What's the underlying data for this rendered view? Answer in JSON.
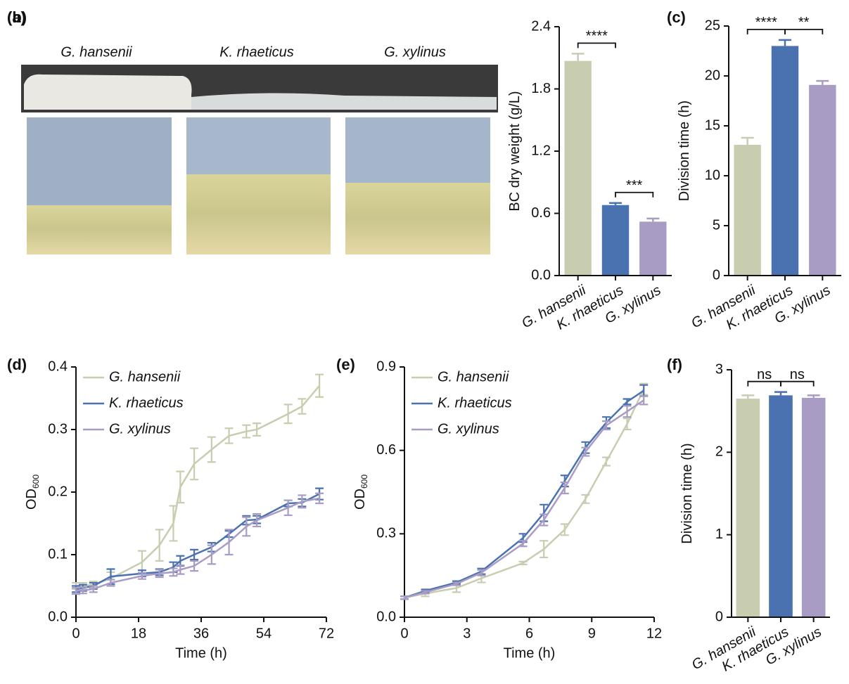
{
  "photo_panel": {
    "panel_label": "(a)",
    "captions": [
      "G. hansenii",
      "K. rhaeticus",
      "G. xylinus"
    ]
  },
  "chart_data": [
    {
      "type": "bar",
      "panel_label": "(b)",
      "y_label": "BC dry weight (g/L)",
      "categories": [
        "G. hansenii",
        "K. rhaeticus",
        "G. xylinus"
      ],
      "values": [
        2.07,
        0.68,
        0.52
      ],
      "errors": [
        0.07,
        0.02,
        0.03
      ],
      "colors": [
        "#c8cdb0",
        "#4a72b0",
        "#a99cc4"
      ],
      "ylim": [
        0,
        2.4
      ],
      "yticks": [
        {
          "value": 0,
          "label": "0.0"
        },
        0.6,
        1.2,
        1.8,
        2.4
      ],
      "significance": [
        {
          "pair": [
            0,
            1
          ],
          "label": "****"
        },
        {
          "pair": [
            1,
            2
          ],
          "label": "***"
        }
      ]
    },
    {
      "type": "bar",
      "panel_label": "(c)",
      "y_label": "Division time (h)",
      "categories": [
        "G. hansenii",
        "K. rhaeticus",
        "G. xylinus"
      ],
      "values": [
        13.1,
        23.0,
        19.1
      ],
      "errors": [
        0.7,
        0.6,
        0.4
      ],
      "colors": [
        "#c8cdb0",
        "#4a72b0",
        "#a99cc4"
      ],
      "ylim": [
        0,
        25
      ],
      "yticks": [
        0,
        5,
        10,
        15,
        20,
        25
      ],
      "significance": [
        {
          "pair": [
            0,
            1
          ],
          "label": "****"
        },
        {
          "pair": [
            1,
            2
          ],
          "label": "**"
        }
      ]
    },
    {
      "type": "line",
      "panel_label": "(d)",
      "x_label": "Time (h)",
      "y_label": "OD",
      "y_label_sub": "600",
      "xlim": [
        0,
        72
      ],
      "xticks": [
        0,
        18,
        36,
        54,
        72
      ],
      "ylim": [
        0,
        0.4
      ],
      "yticks": [
        {
          "value": 0,
          "label": "0.0"
        },
        0.1,
        0.2,
        0.3,
        0.4
      ],
      "x": [
        0,
        2,
        5,
        10,
        19,
        24,
        28,
        30,
        34,
        39,
        44,
        49,
        52,
        61,
        65,
        70
      ],
      "series": [
        {
          "name": "G. hansenii",
          "color": "#c8cdb0",
          "values": [
            0.05,
            0.05,
            0.052,
            0.062,
            0.088,
            0.115,
            0.15,
            0.208,
            0.245,
            0.268,
            0.29,
            0.297,
            0.3,
            0.325,
            0.337,
            0.37
          ],
          "errors": [
            0.005,
            0.005,
            0.005,
            0.01,
            0.018,
            0.025,
            0.028,
            0.025,
            0.025,
            0.02,
            0.012,
            0.01,
            0.01,
            0.015,
            0.012,
            0.018
          ]
        },
        {
          "name": "K. rhaeticus",
          "color": "#4a72b0",
          "values": [
            0.045,
            0.047,
            0.05,
            0.065,
            0.07,
            0.072,
            0.08,
            0.09,
            0.1,
            0.112,
            0.133,
            0.155,
            0.156,
            0.182,
            0.183,
            0.197
          ],
          "errors": [
            0.005,
            0.005,
            0.005,
            0.012,
            0.005,
            0.005,
            0.008,
            0.008,
            0.008,
            0.007,
            0.005,
            0.007,
            0.006,
            0.005,
            0.006,
            0.009
          ]
        },
        {
          "name": "G. xylinus",
          "color": "#a99cc4",
          "values": [
            0.042,
            0.043,
            0.045,
            0.055,
            0.066,
            0.07,
            0.072,
            0.076,
            0.082,
            0.1,
            0.12,
            0.145,
            0.155,
            0.175,
            0.185,
            0.19
          ],
          "errors": [
            0.005,
            0.005,
            0.005,
            0.005,
            0.005,
            0.006,
            0.006,
            0.007,
            0.008,
            0.015,
            0.02,
            0.015,
            0.01,
            0.012,
            0.01,
            0.008
          ]
        }
      ]
    },
    {
      "type": "line",
      "panel_label": "(e)",
      "x_label": "Time (h)",
      "y_label": "OD",
      "y_label_sub": "600",
      "xlim": [
        0,
        12
      ],
      "xticks": [
        0,
        3,
        6,
        9,
        12
      ],
      "ylim": [
        0,
        0.9
      ],
      "yticks": [
        {
          "value": 0,
          "label": "0.0"
        },
        0.3,
        0.6,
        0.9
      ],
      "x": [
        0,
        1,
        2.5,
        3.7,
        5.7,
        6.7,
        7.7,
        8.7,
        9.7,
        10.7,
        11.5
      ],
      "series": [
        {
          "name": "G. hansenii",
          "color": "#c8cdb0",
          "values": [
            0.07,
            0.085,
            0.105,
            0.14,
            0.195,
            0.245,
            0.315,
            0.425,
            0.56,
            0.695,
            0.82
          ],
          "errors": [
            0.005,
            0.01,
            0.015,
            0.015,
            0.005,
            0.03,
            0.02,
            0.015,
            0.015,
            0.02,
            0.02
          ]
        },
        {
          "name": "K. rhaeticus",
          "color": "#4a72b0",
          "values": [
            0.07,
            0.095,
            0.125,
            0.165,
            0.285,
            0.375,
            0.49,
            0.61,
            0.7,
            0.775,
            0.815
          ],
          "errors": [
            0.005,
            0.005,
            0.005,
            0.01,
            0.015,
            0.03,
            0.02,
            0.02,
            0.02,
            0.01,
            0.02
          ]
        },
        {
          "name": "G. xylinus",
          "color": "#a99cc4",
          "values": [
            0.07,
            0.09,
            0.12,
            0.16,
            0.265,
            0.35,
            0.465,
            0.595,
            0.69,
            0.74,
            0.78
          ],
          "errors": [
            0.005,
            0.005,
            0.005,
            0.01,
            0.01,
            0.02,
            0.02,
            0.015,
            0.015,
            0.02,
            0.015
          ]
        }
      ]
    },
    {
      "type": "bar",
      "panel_label": "(f)",
      "y_label": "Division time (h)",
      "categories": [
        "G. hansenii",
        "K. rhaeticus",
        "G. xylinus"
      ],
      "values": [
        2.65,
        2.69,
        2.66
      ],
      "errors": [
        0.04,
        0.04,
        0.03
      ],
      "colors": [
        "#c8cdb0",
        "#4a72b0",
        "#a99cc4"
      ],
      "ylim": [
        0,
        3
      ],
      "yticks": [
        0,
        1,
        2,
        3
      ],
      "significance": [
        {
          "pair": [
            0,
            1
          ],
          "label": "ns"
        },
        {
          "pair": [
            1,
            2
          ],
          "label": "ns"
        }
      ]
    }
  ]
}
